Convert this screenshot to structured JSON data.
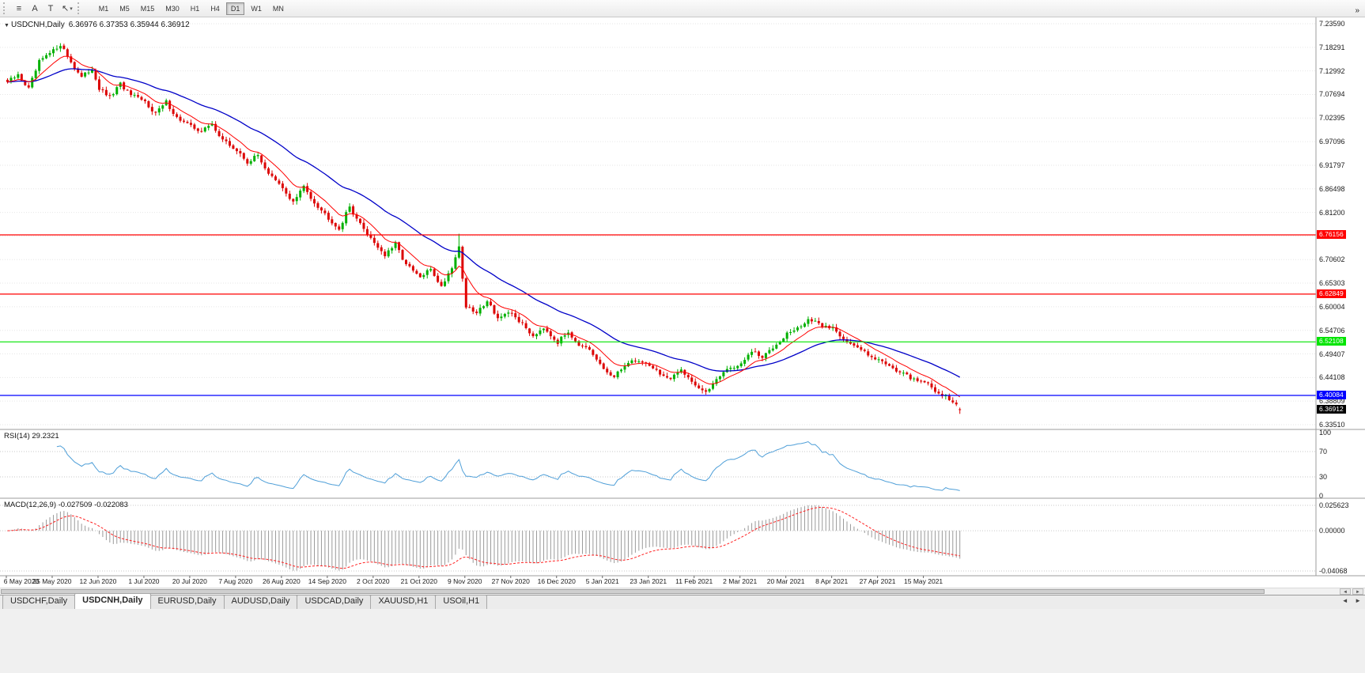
{
  "toolbar": {
    "tools": [
      {
        "name": "menu-icon",
        "glyph": "≡"
      },
      {
        "name": "text-tool-icon",
        "glyph": "A"
      },
      {
        "name": "title-tool-icon",
        "glyph": "T"
      },
      {
        "name": "cursor-tool-icon",
        "glyph": "↖",
        "dropdown": "▾"
      }
    ],
    "timeframes": [
      {
        "label": "M1",
        "active": false
      },
      {
        "label": "M5",
        "active": false
      },
      {
        "label": "M15",
        "active": false
      },
      {
        "label": "M30",
        "active": false
      },
      {
        "label": "H1",
        "active": false
      },
      {
        "label": "H4",
        "active": false
      },
      {
        "label": "D1",
        "active": true
      },
      {
        "label": "W1",
        "active": false
      },
      {
        "label": "MN",
        "active": false
      }
    ],
    "overflow_glyph": "»"
  },
  "chart": {
    "title": {
      "marker": "▼",
      "symbol": "USDCNH,Daily",
      "ohlc": "6.36976 6.37353 6.35944 6.36912"
    }
  },
  "price_axis": {
    "ticks": [
      "7.23590",
      "7.18291",
      "7.12992",
      "7.07694",
      "7.02395",
      "6.97096",
      "6.91797",
      "6.86498",
      "6.81200",
      "6.75901",
      "6.70602",
      "6.65303",
      "6.60004",
      "6.54706",
      "6.49407",
      "6.44108",
      "6.38809",
      "6.33510"
    ]
  },
  "indicator_panels": {
    "rsi": {
      "label": "RSI(14)",
      "value": "29.2321",
      "color": "#4F9FD8",
      "axis_labels": [
        {
          "v": 100,
          "t": "100"
        },
        {
          "v": 70,
          "t": "70"
        },
        {
          "v": 30,
          "t": "30"
        },
        {
          "v": 0,
          "t": "0"
        }
      ],
      "levels": [
        70,
        30
      ]
    },
    "macd": {
      "label": "MACD(12,26,9)",
      "value": "-0.027509 -0.022083",
      "hist_color": "#9A9A9A",
      "signal_color": "#FF2020",
      "axis_labels": [
        {
          "v": 0.025623,
          "t": "0.025623"
        },
        {
          "v": 0,
          "t": "0.00000"
        },
        {
          "v": -0.04068,
          "t": "-0.04068"
        }
      ]
    }
  },
  "date_axis": {
    "labels": [
      "6 May 2020",
      "25 May 2020",
      "12 Jun 2020",
      "1 Jul 2020",
      "20 Jul 2020",
      "7 Aug 2020",
      "26 Aug 2020",
      "14 Sep 2020",
      "2 Oct 2020",
      "21 Oct 2020",
      "9 Nov 2020",
      "27 Nov 2020",
      "16 Dec 2020",
      "5 Jan 2021",
      "23 Jan 2021",
      "11 Feb 2021",
      "2 Mar 2021",
      "20 Mar 2021",
      "8 Apr 2021",
      "27 Apr 2021",
      "15 May 2021"
    ]
  },
  "scrollbar": {
    "left_glyph": "◄",
    "right_glyph": "►"
  },
  "tabs": {
    "items": [
      {
        "label": "USDCHF,Daily",
        "active": false
      },
      {
        "label": "USDCNH,Daily",
        "active": true
      },
      {
        "label": "EURUSD,Daily",
        "active": false
      },
      {
        "label": "AUDUSD,Daily",
        "active": false
      },
      {
        "label": "USDCAD,Daily",
        "active": false
      },
      {
        "label": "XAUUSD,H1",
        "active": false
      },
      {
        "label": "USOil,H1",
        "active": false
      }
    ],
    "scroll_left_glyph": "◄",
    "scroll_right_glyph": "►"
  },
  "chart_data": {
    "type": "candlestick",
    "symbol": "USDCNH",
    "timeframe": "Daily",
    "current_ohlc": {
      "open": 6.36976,
      "high": 6.37353,
      "low": 6.35944,
      "close": 6.36912
    },
    "y_axis": {
      "top": 7.2359,
      "bottom": 6.3351
    },
    "x_axis_dates": [
      "6 May 2020",
      "25 May 2020",
      "12 Jun 2020",
      "1 Jul 2020",
      "20 Jul 2020",
      "7 Aug 2020",
      "26 Aug 2020",
      "14 Sep 2020",
      "2 Oct 2020",
      "21 Oct 2020",
      "9 Nov 2020",
      "27 Nov 2020",
      "16 Dec 2020",
      "5 Jan 2021",
      "23 Jan 2021",
      "11 Feb 2021",
      "2 Mar 2021",
      "20 Mar 2021",
      "8 Apr 2021",
      "27 Apr 2021",
      "15 May 2021"
    ],
    "candles_per_label": 13,
    "candle_count": 271,
    "close_anchors": [
      [
        0,
        7.105
      ],
      [
        3,
        7.12
      ],
      [
        6,
        7.09
      ],
      [
        9,
        7.15
      ],
      [
        13,
        7.175
      ],
      [
        15,
        7.19
      ],
      [
        18,
        7.15
      ],
      [
        21,
        7.115
      ],
      [
        24,
        7.135
      ],
      [
        26,
        7.09
      ],
      [
        29,
        7.07
      ],
      [
        32,
        7.1
      ],
      [
        35,
        7.075
      ],
      [
        39,
        7.06
      ],
      [
        42,
        7.035
      ],
      [
        45,
        7.06
      ],
      [
        48,
        7.025
      ],
      [
        52,
        7.005
      ],
      [
        55,
        6.995
      ],
      [
        58,
        7.01
      ],
      [
        61,
        6.975
      ],
      [
        65,
        6.95
      ],
      [
        68,
        6.925
      ],
      [
        71,
        6.94
      ],
      [
        74,
        6.9
      ],
      [
        78,
        6.865
      ],
      [
        81,
        6.835
      ],
      [
        84,
        6.87
      ],
      [
        87,
        6.835
      ],
      [
        91,
        6.8
      ],
      [
        94,
        6.775
      ],
      [
        97,
        6.825
      ],
      [
        100,
        6.785
      ],
      [
        104,
        6.745
      ],
      [
        107,
        6.715
      ],
      [
        110,
        6.74
      ],
      [
        113,
        6.695
      ],
      [
        117,
        6.665
      ],
      [
        120,
        6.685
      ],
      [
        123,
        6.645
      ],
      [
        126,
        6.69
      ],
      [
        128,
        6.735
      ],
      [
        129,
        6.665
      ],
      [
        130,
        6.6
      ],
      [
        133,
        6.585
      ],
      [
        136,
        6.615
      ],
      [
        139,
        6.575
      ],
      [
        143,
        6.585
      ],
      [
        146,
        6.56
      ],
      [
        149,
        6.535
      ],
      [
        152,
        6.555
      ],
      [
        156,
        6.52
      ],
      [
        159,
        6.545
      ],
      [
        162,
        6.515
      ],
      [
        165,
        6.5
      ],
      [
        169,
        6.46
      ],
      [
        172,
        6.44
      ],
      [
        175,
        6.47
      ],
      [
        178,
        6.48
      ],
      [
        182,
        6.47
      ],
      [
        185,
        6.45
      ],
      [
        188,
        6.435
      ],
      [
        191,
        6.46
      ],
      [
        195,
        6.425
      ],
      [
        198,
        6.405
      ],
      [
        201,
        6.44
      ],
      [
        204,
        6.46
      ],
      [
        208,
        6.47
      ],
      [
        211,
        6.5
      ],
      [
        214,
        6.485
      ],
      [
        217,
        6.51
      ],
      [
        221,
        6.54
      ],
      [
        224,
        6.55
      ],
      [
        227,
        6.572
      ],
      [
        230,
        6.56
      ],
      [
        234,
        6.552
      ],
      [
        237,
        6.53
      ],
      [
        240,
        6.51
      ],
      [
        243,
        6.5
      ],
      [
        247,
        6.48
      ],
      [
        250,
        6.47
      ],
      [
        253,
        6.452
      ],
      [
        256,
        6.44
      ],
      [
        260,
        6.432
      ],
      [
        263,
        6.41
      ],
      [
        266,
        6.4
      ],
      [
        268,
        6.385
      ],
      [
        270,
        6.36912
      ]
    ],
    "spike": {
      "index": 128,
      "high": 6.764
    },
    "horizontal_lines": [
      {
        "price": 6.76156,
        "label": "6.76156",
        "color": "#FF0000"
      },
      {
        "price": 6.62849,
        "label": "6.62849",
        "color": "#FF0000"
      },
      {
        "price": 6.52108,
        "label": "6.52108",
        "color": "#00E400"
      },
      {
        "price": 6.40084,
        "label": "6.40084",
        "color": "#0000FF"
      }
    ],
    "current_price": {
      "price": 6.36912,
      "label": "6.36912",
      "bg": "#000000"
    },
    "colors": {
      "up": "#00B000",
      "down": "#DC0404",
      "ma_fast": "#FF0000",
      "ma_slow": "#0000C8"
    },
    "ma": {
      "fast_period": 10,
      "slow_period": 34
    },
    "indicators": {
      "rsi": {
        "period": 14,
        "current": 29.2321,
        "levels": [
          70,
          30
        ],
        "range": [
          0,
          100
        ]
      },
      "macd": {
        "fast": 12,
        "slow": 26,
        "signal": 9,
        "current": -0.027509,
        "signal_current": -0.022083,
        "scale_max": 0.025623,
        "scale_min": -0.04068
      }
    }
  }
}
